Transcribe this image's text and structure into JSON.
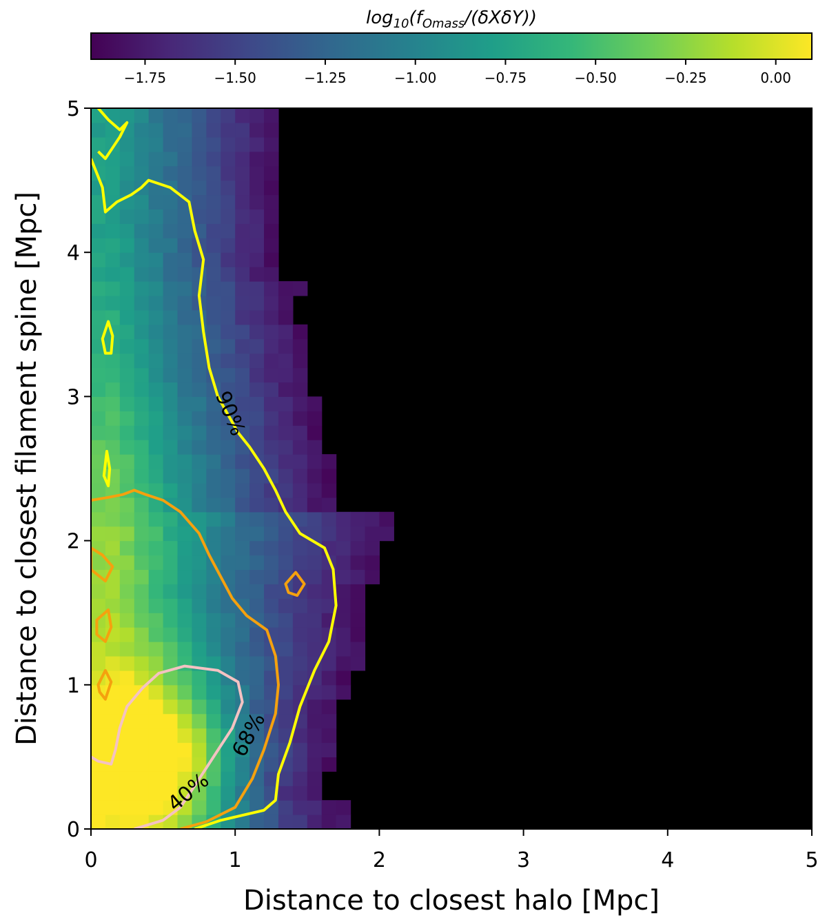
{
  "chart_data": {
    "type": "heatmap",
    "title": "",
    "xlabel": "Distance to closest halo [Mpc]",
    "ylabel": "Distance to closest filament spine [Mpc]",
    "xlim": [
      0,
      5
    ],
    "ylim": [
      0,
      5
    ],
    "x_ticks": [
      "0",
      "1",
      "2",
      "3",
      "4",
      "5"
    ],
    "y_ticks": [
      "0",
      "1",
      "2",
      "3",
      "4",
      "5"
    ],
    "background_color": "#000000",
    "grid": false,
    "colorbar": {
      "orientation": "horizontal",
      "placement": "top",
      "label_parts": {
        "prefix": "log",
        "base": "10",
        "open": "(f",
        "sub": "Omass",
        "rest": "/(δXδY))"
      },
      "range": [
        -1.9,
        0.1
      ],
      "ticks": [
        "−1.75",
        "−1.50",
        "−1.25",
        "−1.00",
        "−0.75",
        "−0.50",
        "−0.25",
        "0.00"
      ],
      "tick_values": [
        -1.75,
        -1.5,
        -1.25,
        -1.0,
        -0.75,
        -0.5,
        -0.25,
        0.0
      ],
      "colormap": "viridis",
      "stops": [
        "#440154",
        "#482878",
        "#3e4989",
        "#31688e",
        "#26828e",
        "#1f9e89",
        "#35b779",
        "#6ece58",
        "#b5de2b",
        "#fde725"
      ]
    },
    "populated_region": {
      "description_free": true,
      "bin_size": 0.1,
      "max_x_by_y": [
        {
          "y": [
            0.0,
            0.2
          ],
          "x_max": 1.8
        },
        {
          "y": [
            0.2,
            0.4
          ],
          "x_max": 1.6
        },
        {
          "y": [
            0.4,
            0.9
          ],
          "x_max": 1.7
        },
        {
          "y": [
            0.9,
            1.1
          ],
          "x_max": 1.8
        },
        {
          "y": [
            1.1,
            1.7
          ],
          "x_max": 1.9
        },
        {
          "y": [
            1.7,
            2.0
          ],
          "x_max": 2.0
        },
        {
          "y": [
            2.0,
            2.2
          ],
          "x_max": 2.1
        },
        {
          "y": [
            2.2,
            2.6
          ],
          "x_max": 1.7
        },
        {
          "y": [
            2.6,
            3.0
          ],
          "x_max": 1.6
        },
        {
          "y": [
            3.0,
            3.5
          ],
          "x_max": 1.5
        },
        {
          "y": [
            3.5,
            3.8
          ],
          "x_max": 1.4
        },
        {
          "y": [
            3.8,
            4.9
          ],
          "x_max": 1.3
        },
        {
          "y": [
            4.9,
            5.0
          ],
          "x_max": 1.3
        }
      ],
      "peak": {
        "x": 0.05,
        "y": 0.15,
        "value": 0.05
      }
    },
    "contours": [
      {
        "name": "40%",
        "color": "#f4c2c2",
        "label_pos": {
          "x": 0.68,
          "y": 0.25
        },
        "path": [
          [
            0.3,
            0.0
          ],
          [
            0.5,
            0.06
          ],
          [
            0.62,
            0.15
          ],
          [
            0.72,
            0.3
          ],
          [
            0.85,
            0.5
          ],
          [
            0.98,
            0.7
          ],
          [
            1.05,
            0.88
          ],
          [
            1.02,
            1.02
          ],
          [
            0.88,
            1.1
          ],
          [
            0.65,
            1.13
          ],
          [
            0.47,
            1.08
          ],
          [
            0.36,
            0.98
          ],
          [
            0.25,
            0.85
          ],
          [
            0.2,
            0.7
          ],
          [
            0.17,
            0.55
          ],
          [
            0.14,
            0.45
          ],
          [
            0.05,
            0.47
          ],
          [
            0.0,
            0.5
          ]
        ]
      },
      {
        "name": "68%",
        "color": "#f5a10e",
        "label_pos": {
          "x": 1.1,
          "y": 0.65
        },
        "path": [
          [
            0.62,
            0.0
          ],
          [
            0.8,
            0.05
          ],
          [
            1.0,
            0.15
          ],
          [
            1.12,
            0.35
          ],
          [
            1.2,
            0.55
          ],
          [
            1.28,
            0.8
          ],
          [
            1.3,
            1.0
          ],
          [
            1.28,
            1.2
          ],
          [
            1.22,
            1.38
          ],
          [
            1.08,
            1.48
          ],
          [
            0.98,
            1.6
          ],
          [
            0.9,
            1.75
          ],
          [
            0.82,
            1.9
          ],
          [
            0.75,
            2.05
          ],
          [
            0.62,
            2.2
          ],
          [
            0.5,
            2.28
          ],
          [
            0.38,
            2.32
          ],
          [
            0.3,
            2.35
          ],
          [
            0.22,
            2.32
          ],
          [
            0.12,
            2.3
          ],
          [
            0.0,
            2.28
          ]
        ]
      },
      {
        "name": "90%",
        "color": "#ffff00",
        "label_pos": {
          "x": 0.96,
          "y": 2.88
        },
        "path": [
          [
            0.72,
            0.0
          ],
          [
            0.9,
            0.06
          ],
          [
            1.2,
            0.13
          ],
          [
            1.28,
            0.2
          ],
          [
            1.3,
            0.38
          ],
          [
            1.38,
            0.6
          ],
          [
            1.45,
            0.85
          ],
          [
            1.55,
            1.1
          ],
          [
            1.65,
            1.3
          ],
          [
            1.7,
            1.55
          ],
          [
            1.68,
            1.8
          ],
          [
            1.62,
            1.95
          ],
          [
            1.45,
            2.05
          ],
          [
            1.35,
            2.2
          ],
          [
            1.28,
            2.35
          ],
          [
            1.2,
            2.5
          ],
          [
            1.1,
            2.65
          ],
          [
            1.02,
            2.75
          ],
          [
            0.88,
            3.0
          ],
          [
            0.82,
            3.2
          ],
          [
            0.78,
            3.45
          ],
          [
            0.75,
            3.7
          ],
          [
            0.78,
            3.95
          ],
          [
            0.72,
            4.15
          ],
          [
            0.68,
            4.35
          ],
          [
            0.55,
            4.45
          ],
          [
            0.4,
            4.5
          ],
          [
            0.35,
            4.45
          ],
          [
            0.28,
            4.4
          ],
          [
            0.18,
            4.35
          ],
          [
            0.1,
            4.28
          ],
          [
            0.08,
            4.45
          ],
          [
            0.0,
            4.65
          ]
        ]
      },
      {
        "name": "",
        "color": "#ffff00",
        "label_pos": null,
        "path": [
          [
            0.05,
            5.0
          ],
          [
            0.12,
            4.92
          ],
          [
            0.2,
            4.85
          ],
          [
            0.25,
            4.9
          ],
          [
            0.2,
            4.8
          ],
          [
            0.1,
            4.65
          ],
          [
            0.05,
            4.7
          ]
        ]
      }
    ],
    "islands": [
      {
        "color": "#ffff00",
        "path": [
          [
            0.08,
            3.4
          ],
          [
            0.12,
            3.52
          ],
          [
            0.15,
            3.42
          ],
          [
            0.14,
            3.3
          ],
          [
            0.1,
            3.3
          ]
        ]
      },
      {
        "color": "#ffff00",
        "path": [
          [
            0.09,
            2.45
          ],
          [
            0.11,
            2.62
          ],
          [
            0.13,
            2.5
          ],
          [
            0.12,
            2.38
          ]
        ]
      },
      {
        "color": "#f5a10e",
        "path": [
          [
            1.35,
            1.7
          ],
          [
            1.42,
            1.78
          ],
          [
            1.48,
            1.7
          ],
          [
            1.43,
            1.62
          ],
          [
            1.37,
            1.64
          ]
        ]
      },
      {
        "color": "#f5a10e",
        "path": [
          [
            0.0,
            1.95
          ],
          [
            0.08,
            1.9
          ],
          [
            0.15,
            1.82
          ],
          [
            0.1,
            1.72
          ],
          [
            0.0,
            1.8
          ]
        ]
      },
      {
        "color": "#f5a10e",
        "path": [
          [
            0.04,
            1.45
          ],
          [
            0.12,
            1.52
          ],
          [
            0.14,
            1.4
          ],
          [
            0.1,
            1.3
          ],
          [
            0.04,
            1.35
          ]
        ]
      },
      {
        "color": "#f5a10e",
        "path": [
          [
            0.05,
            1.0
          ],
          [
            0.1,
            1.1
          ],
          [
            0.14,
            1.02
          ],
          [
            0.1,
            0.9
          ],
          [
            0.06,
            0.95
          ]
        ]
      }
    ]
  }
}
